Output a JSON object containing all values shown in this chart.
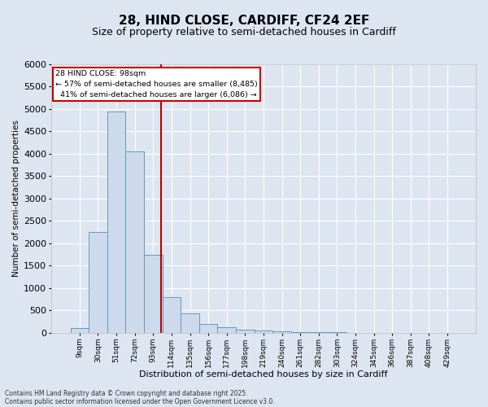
{
  "title_line1": "28, HIND CLOSE, CARDIFF, CF24 2EF",
  "title_line2": "Size of property relative to semi-detached houses in Cardiff",
  "xlabel": "Distribution of semi-detached houses by size in Cardiff",
  "ylabel": "Number of semi-detached properties",
  "categories": [
    "9sqm",
    "30sqm",
    "51sqm",
    "72sqm",
    "93sqm",
    "114sqm",
    "135sqm",
    "156sqm",
    "177sqm",
    "198sqm",
    "219sqm",
    "240sqm",
    "261sqm",
    "282sqm",
    "303sqm",
    "324sqm",
    "345sqm",
    "366sqm",
    "387sqm",
    "408sqm",
    "429sqm"
  ],
  "values": [
    100,
    2250,
    4950,
    4050,
    1750,
    800,
    430,
    200,
    130,
    80,
    50,
    30,
    15,
    10,
    8,
    6,
    5,
    4,
    3,
    2,
    1
  ],
  "bar_color": "#ccdaeb",
  "bar_edge_color": "#6699bb",
  "vline_color": "#bb0000",
  "background_color": "#dde5f0",
  "grid_color": "#ffffff",
  "ylim_max": 6000,
  "yticks": [
    0,
    500,
    1000,
    1500,
    2000,
    2500,
    3000,
    3500,
    4000,
    4500,
    5000,
    5500,
    6000
  ],
  "vline_x": 4.45,
  "annot_title": "28 HIND CLOSE: 98sqm",
  "annot_smaller": "← 57% of semi-detached houses are smaller (8,485)",
  "annot_larger": "  41% of semi-detached houses are larger (6,086) →",
  "annot_border_color": "#cc0000",
  "footnote_line1": "Contains HM Land Registry data © Crown copyright and database right 2025.",
  "footnote_line2": "Contains public sector information licensed under the Open Government Licence v3.0."
}
